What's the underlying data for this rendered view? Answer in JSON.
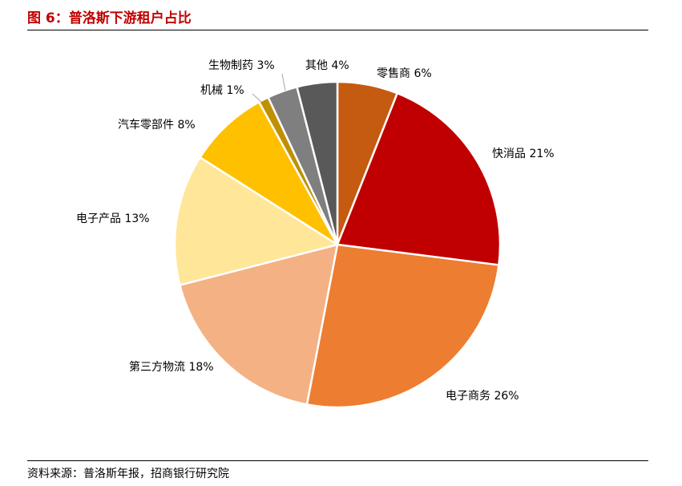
{
  "header": {
    "title": "图 6：普洛斯下游租户占比"
  },
  "footer": {
    "source": "资料来源：普洛斯年报，招商银行研究院"
  },
  "chart_data": {
    "type": "pie",
    "title": "",
    "unit": "%",
    "slices": [
      {
        "name": "零售商",
        "value": 6,
        "label": "零售商 6%",
        "color": "#c55a11"
      },
      {
        "name": "快消品",
        "value": 21,
        "label": "快消品 21%",
        "color": "#c00000"
      },
      {
        "name": "电子商务",
        "value": 26,
        "label": "电子商务 26%",
        "color": "#ed7d31"
      },
      {
        "name": "第三方物流",
        "value": 18,
        "label": "第三方物流 18%",
        "color": "#f4b183"
      },
      {
        "name": "电子产品",
        "value": 13,
        "label": "电子产品 13%",
        "color": "#ffe699"
      },
      {
        "name": "汽车零部件",
        "value": 8,
        "label": "汽车零部件 8%",
        "color": "#ffc000"
      },
      {
        "name": "机械",
        "value": 1,
        "label": "机械 1%",
        "color": "#bf9000"
      },
      {
        "name": "生物制药",
        "value": 3,
        "label": "生物制药 3%",
        "color": "#7f7f7f"
      },
      {
        "name": "其他",
        "value": 4,
        "label": "其他 4%",
        "color": "#595959"
      }
    ]
  }
}
